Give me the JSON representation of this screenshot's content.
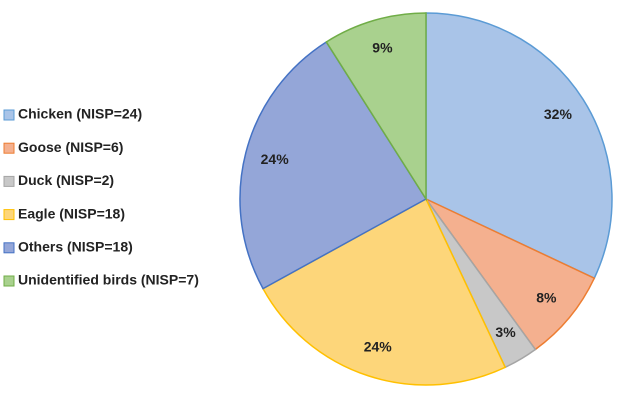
{
  "chart_data": {
    "type": "pie",
    "categories": [
      "Chicken (NISP=24)",
      "Goose (NISP=6)",
      "Duck (NISP=2)",
      "Eagle (NISP=18)",
      "Others (NISP=18)",
      "Unidentified birds (NISP=7)"
    ],
    "values": [
      32,
      8,
      3,
      24,
      24,
      9
    ],
    "value_labels": [
      "32%",
      "8%",
      "3%",
      "24%",
      "24%",
      "9%"
    ],
    "colors": [
      "#a9c4e8",
      "#f4b08f",
      "#c8c8c8",
      "#fdd67a",
      "#94a6d8",
      "#a9d18e"
    ],
    "edge_colors": [
      "#5b9bd5",
      "#ed7d31",
      "#a5a5a5",
      "#ffc000",
      "#4472c4",
      "#70ad47"
    ],
    "legend": "left"
  }
}
